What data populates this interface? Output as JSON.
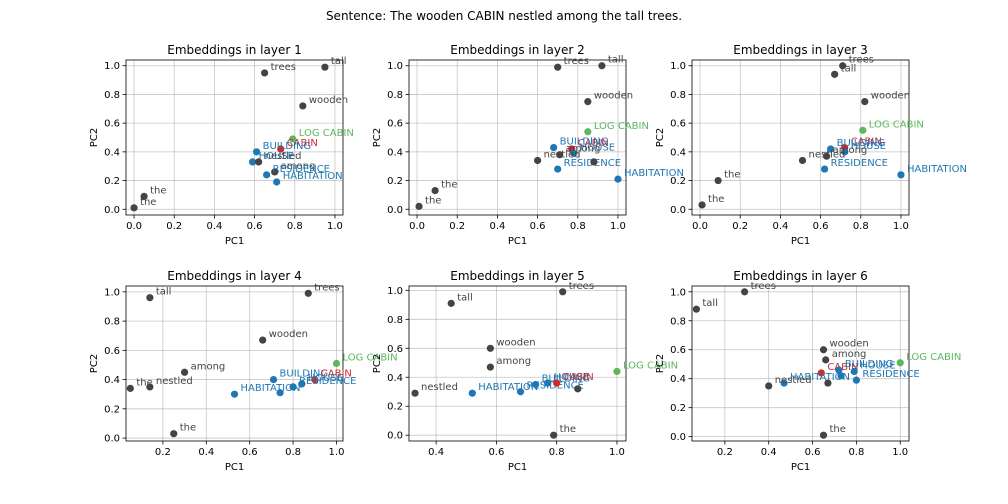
{
  "sentence_title": "Sentence: The wooden CABIN nestled among the tall trees.",
  "colors": {
    "context": "#444444",
    "target": "#d62728",
    "related": "#1f77b4",
    "concept": "#5cb85c"
  },
  "chart_data": [
    {
      "type": "scatter",
      "title": "Embeddings in layer 1",
      "xlabel": "PC1",
      "ylabel": "PC2",
      "xlim": [
        -0.04,
        1.04
      ],
      "ylim": [
        -0.04,
        1.04
      ],
      "xticks": [
        0.0,
        0.2,
        0.4,
        0.6,
        0.8,
        1.0
      ],
      "yticks": [
        0.0,
        0.2,
        0.4,
        0.6,
        0.8,
        1.0
      ],
      "tick_labels_x": [
        "0.0",
        "0.2",
        "0.4",
        "0.6",
        "0.8",
        "1.0"
      ],
      "tick_labels_y": [
        "0.0",
        "0.2",
        "0.4",
        "0.6",
        "0.8",
        "1.0"
      ],
      "grid": true,
      "points": [
        {
          "label": "the",
          "x": 0.0,
          "y": 0.01,
          "group": "context"
        },
        {
          "label": "the",
          "x": 0.05,
          "y": 0.09,
          "group": "context"
        },
        {
          "label": "trees",
          "x": 0.65,
          "y": 0.95,
          "group": "context"
        },
        {
          "label": "tall",
          "x": 0.95,
          "y": 0.99,
          "group": "context"
        },
        {
          "label": "wooden",
          "x": 0.84,
          "y": 0.72,
          "group": "context"
        },
        {
          "label": "LOG CABIN",
          "x": 0.79,
          "y": 0.49,
          "group": "concept"
        },
        {
          "label": "CABIN",
          "x": 0.73,
          "y": 0.42,
          "group": "target"
        },
        {
          "label": "BUILDING",
          "x": 0.61,
          "y": 0.4,
          "group": "related"
        },
        {
          "label": "HOUSE",
          "x": 0.59,
          "y": 0.33,
          "group": "related"
        },
        {
          "label": "nestled",
          "x": 0.62,
          "y": 0.33,
          "group": "context"
        },
        {
          "label": "among",
          "x": 0.7,
          "y": 0.26,
          "group": "context"
        },
        {
          "label": "RESIDENCE",
          "x": 0.66,
          "y": 0.24,
          "group": "related"
        },
        {
          "label": "HABITATION",
          "x": 0.71,
          "y": 0.19,
          "group": "related"
        }
      ]
    },
    {
      "type": "scatter",
      "title": "Embeddings in layer 2",
      "xlabel": "PC1",
      "ylabel": "PC2",
      "xlim": [
        -0.04,
        1.04
      ],
      "ylim": [
        -0.04,
        1.04
      ],
      "xticks": [
        0.0,
        0.2,
        0.4,
        0.6,
        0.8,
        1.0
      ],
      "yticks": [
        0.0,
        0.2,
        0.4,
        0.6,
        0.8,
        1.0
      ],
      "tick_labels_x": [
        "0.0",
        "0.2",
        "0.4",
        "0.6",
        "0.8",
        "1.0"
      ],
      "tick_labels_y": [
        "0.0",
        "0.2",
        "0.4",
        "0.6",
        "0.8",
        "1.0"
      ],
      "grid": true,
      "points": [
        {
          "label": "the",
          "x": 0.01,
          "y": 0.02,
          "group": "context"
        },
        {
          "label": "the",
          "x": 0.09,
          "y": 0.13,
          "group": "context"
        },
        {
          "label": "trees",
          "x": 0.7,
          "y": 0.99,
          "group": "context"
        },
        {
          "label": "tall",
          "x": 0.92,
          "y": 1.0,
          "group": "context"
        },
        {
          "label": "wooden",
          "x": 0.85,
          "y": 0.75,
          "group": "context"
        },
        {
          "label": "LOG CABIN",
          "x": 0.85,
          "y": 0.54,
          "group": "concept"
        },
        {
          "label": "CABIN",
          "x": 0.77,
          "y": 0.42,
          "group": "target"
        },
        {
          "label": "BUILDING",
          "x": 0.68,
          "y": 0.43,
          "group": "related"
        },
        {
          "label": "HOUSE",
          "x": 0.78,
          "y": 0.39,
          "group": "related"
        },
        {
          "label": "nestled",
          "x": 0.6,
          "y": 0.34,
          "group": "context"
        },
        {
          "label": "among",
          "x": 0.71,
          "y": 0.38,
          "group": "context"
        },
        {
          "label": "RESIDENCE",
          "x": 0.7,
          "y": 0.28,
          "group": "related"
        },
        {
          "label": "HABITATION",
          "x": 1.0,
          "y": 0.21,
          "group": "related"
        },
        {
          "label": "",
          "x": 0.88,
          "y": 0.33,
          "group": "context"
        }
      ]
    },
    {
      "type": "scatter",
      "title": "Embeddings in layer 3",
      "xlabel": "PC1",
      "ylabel": "PC2",
      "xlim": [
        -0.04,
        1.04
      ],
      "ylim": [
        -0.04,
        1.04
      ],
      "xticks": [
        0.0,
        0.2,
        0.4,
        0.6,
        0.8,
        1.0
      ],
      "yticks": [
        0.0,
        0.2,
        0.4,
        0.6,
        0.8,
        1.0
      ],
      "tick_labels_x": [
        "0.0",
        "0.2",
        "0.4",
        "0.6",
        "0.8",
        "1.0"
      ],
      "tick_labels_y": [
        "0.0",
        "0.2",
        "0.4",
        "0.6",
        "0.8",
        "1.0"
      ],
      "grid": true,
      "points": [
        {
          "label": "the",
          "x": 0.01,
          "y": 0.03,
          "group": "context"
        },
        {
          "label": "the",
          "x": 0.09,
          "y": 0.2,
          "group": "context"
        },
        {
          "label": "trees",
          "x": 0.71,
          "y": 1.0,
          "group": "context"
        },
        {
          "label": "tall",
          "x": 0.67,
          "y": 0.94,
          "group": "context"
        },
        {
          "label": "wooden",
          "x": 0.82,
          "y": 0.75,
          "group": "context"
        },
        {
          "label": "LOG CABIN",
          "x": 0.81,
          "y": 0.55,
          "group": "concept"
        },
        {
          "label": "CABIN",
          "x": 0.72,
          "y": 0.43,
          "group": "target"
        },
        {
          "label": "BUILDING",
          "x": 0.65,
          "y": 0.42,
          "group": "related"
        },
        {
          "label": "HOUSE",
          "x": 0.72,
          "y": 0.4,
          "group": "related"
        },
        {
          "label": "nestled",
          "x": 0.51,
          "y": 0.34,
          "group": "context"
        },
        {
          "label": "among",
          "x": 0.63,
          "y": 0.37,
          "group": "context"
        },
        {
          "label": "RESIDENCE",
          "x": 0.62,
          "y": 0.28,
          "group": "related"
        },
        {
          "label": "HABITATION",
          "x": 1.0,
          "y": 0.24,
          "group": "related"
        }
      ]
    },
    {
      "type": "scatter",
      "title": "Embeddings in layer 4",
      "xlabel": "PC1",
      "ylabel": "PC2",
      "xlim": [
        0.03,
        1.03
      ],
      "ylim": [
        -0.02,
        1.04
      ],
      "xticks": [
        0.2,
        0.4,
        0.6,
        0.8,
        1.0
      ],
      "yticks": [
        0.0,
        0.2,
        0.4,
        0.6,
        0.8,
        1.0
      ],
      "tick_labels_x": [
        "0.2",
        "0.4",
        "0.6",
        "0.8",
        "1.0"
      ],
      "tick_labels_y": [
        "0.0",
        "0.2",
        "0.4",
        "0.6",
        "0.8",
        "1.0"
      ],
      "grid": true,
      "points": [
        {
          "label": "tall",
          "x": 0.14,
          "y": 0.96,
          "group": "context"
        },
        {
          "label": "trees",
          "x": 0.87,
          "y": 0.99,
          "group": "context"
        },
        {
          "label": "wooden",
          "x": 0.66,
          "y": 0.67,
          "group": "context"
        },
        {
          "label": "LOG CABIN",
          "x": 1.0,
          "y": 0.51,
          "group": "concept"
        },
        {
          "label": "among",
          "x": 0.3,
          "y": 0.45,
          "group": "context"
        },
        {
          "label": "nestled",
          "x": 0.14,
          "y": 0.35,
          "group": "context"
        },
        {
          "label": "the",
          "x": 0.05,
          "y": 0.34,
          "group": "context"
        },
        {
          "label": "the",
          "x": 0.25,
          "y": 0.03,
          "group": "context"
        },
        {
          "label": "BUILDING",
          "x": 0.71,
          "y": 0.4,
          "group": "related"
        },
        {
          "label": "CABIN",
          "x": 0.9,
          "y": 0.4,
          "group": "target"
        },
        {
          "label": "HOUSE",
          "x": 0.84,
          "y": 0.37,
          "group": "related"
        },
        {
          "label": "RESIDENCE",
          "x": 0.8,
          "y": 0.35,
          "group": "related"
        },
        {
          "label": "HABITATION",
          "x": 0.53,
          "y": 0.3,
          "group": "related"
        },
        {
          "label": "",
          "x": 0.74,
          "y": 0.31,
          "group": "related"
        }
      ]
    },
    {
      "type": "scatter",
      "title": "Embeddings in layer 5",
      "xlabel": "PC1",
      "ylabel": "PC2",
      "xlim": [
        0.31,
        1.03
      ],
      "ylim": [
        -0.04,
        1.03
      ],
      "xticks": [
        0.4,
        0.6,
        0.8,
        1.0
      ],
      "yticks": [
        0.0,
        0.2,
        0.4,
        0.6,
        0.8,
        1.0
      ],
      "tick_labels_x": [
        "0.4",
        "0.6",
        "0.8",
        "1.0"
      ],
      "tick_labels_y": [
        "0.0",
        "0.2",
        "0.4",
        "0.6",
        "0.8",
        "1.0"
      ],
      "grid": true,
      "points": [
        {
          "label": "tall",
          "x": 0.45,
          "y": 0.91,
          "group": "context"
        },
        {
          "label": "trees",
          "x": 0.82,
          "y": 0.99,
          "group": "context"
        },
        {
          "label": "wooden",
          "x": 0.58,
          "y": 0.6,
          "group": "context"
        },
        {
          "label": "among",
          "x": 0.58,
          "y": 0.47,
          "group": "context"
        },
        {
          "label": "LOG CABIN",
          "x": 1.0,
          "y": 0.44,
          "group": "concept"
        },
        {
          "label": "nestled",
          "x": 0.33,
          "y": 0.29,
          "group": "context"
        },
        {
          "label": "the",
          "x": 0.79,
          "y": 0.0,
          "group": "context"
        },
        {
          "label": "HABITATION",
          "x": 0.52,
          "y": 0.29,
          "group": "related"
        },
        {
          "label": "RESIDENCE",
          "x": 0.68,
          "y": 0.3,
          "group": "related"
        },
        {
          "label": "BUILDING",
          "x": 0.73,
          "y": 0.35,
          "group": "related"
        },
        {
          "label": "HOUSE",
          "x": 0.77,
          "y": 0.36,
          "group": "related"
        },
        {
          "label": "CABIN",
          "x": 0.8,
          "y": 0.36,
          "group": "target"
        },
        {
          "label": "",
          "x": 0.87,
          "y": 0.32,
          "group": "context"
        }
      ]
    },
    {
      "type": "scatter",
      "title": "Embeddings in layer 6",
      "xlabel": "PC1",
      "ylabel": "PC2",
      "xlim": [
        0.05,
        1.04
      ],
      "ylim": [
        -0.03,
        1.04
      ],
      "xticks": [
        0.2,
        0.4,
        0.6,
        0.8,
        1.0
      ],
      "yticks": [
        0.0,
        0.2,
        0.4,
        0.6,
        0.8,
        1.0
      ],
      "tick_labels_x": [
        "0.2",
        "0.4",
        "0.6",
        "0.8",
        "1.0"
      ],
      "tick_labels_y": [
        "0.0",
        "0.2",
        "0.4",
        "0.6",
        "0.8",
        "1.0"
      ],
      "grid": true,
      "points": [
        {
          "label": "tall",
          "x": 0.07,
          "y": 0.88,
          "group": "context"
        },
        {
          "label": "trees",
          "x": 0.29,
          "y": 1.0,
          "group": "context"
        },
        {
          "label": "wooden",
          "x": 0.65,
          "y": 0.6,
          "group": "context"
        },
        {
          "label": "among",
          "x": 0.66,
          "y": 0.53,
          "group": "context"
        },
        {
          "label": "LOG CABIN",
          "x": 1.0,
          "y": 0.51,
          "group": "concept"
        },
        {
          "label": "CABIN",
          "x": 0.64,
          "y": 0.44,
          "group": "target"
        },
        {
          "label": "BUILDING",
          "x": 0.72,
          "y": 0.46,
          "group": "related"
        },
        {
          "label": "HOUSE",
          "x": 0.79,
          "y": 0.45,
          "group": "related"
        },
        {
          "label": "HABITATION",
          "x": 0.47,
          "y": 0.37,
          "group": "related"
        },
        {
          "label": "nestled",
          "x": 0.4,
          "y": 0.35,
          "group": "context"
        },
        {
          "label": "RESIDENCE",
          "x": 0.8,
          "y": 0.39,
          "group": "related"
        },
        {
          "label": "the",
          "x": 0.65,
          "y": 0.01,
          "group": "context"
        },
        {
          "label": "",
          "x": 0.67,
          "y": 0.37,
          "group": "context"
        },
        {
          "label": "",
          "x": 0.73,
          "y": 0.42,
          "group": "related"
        }
      ]
    }
  ]
}
